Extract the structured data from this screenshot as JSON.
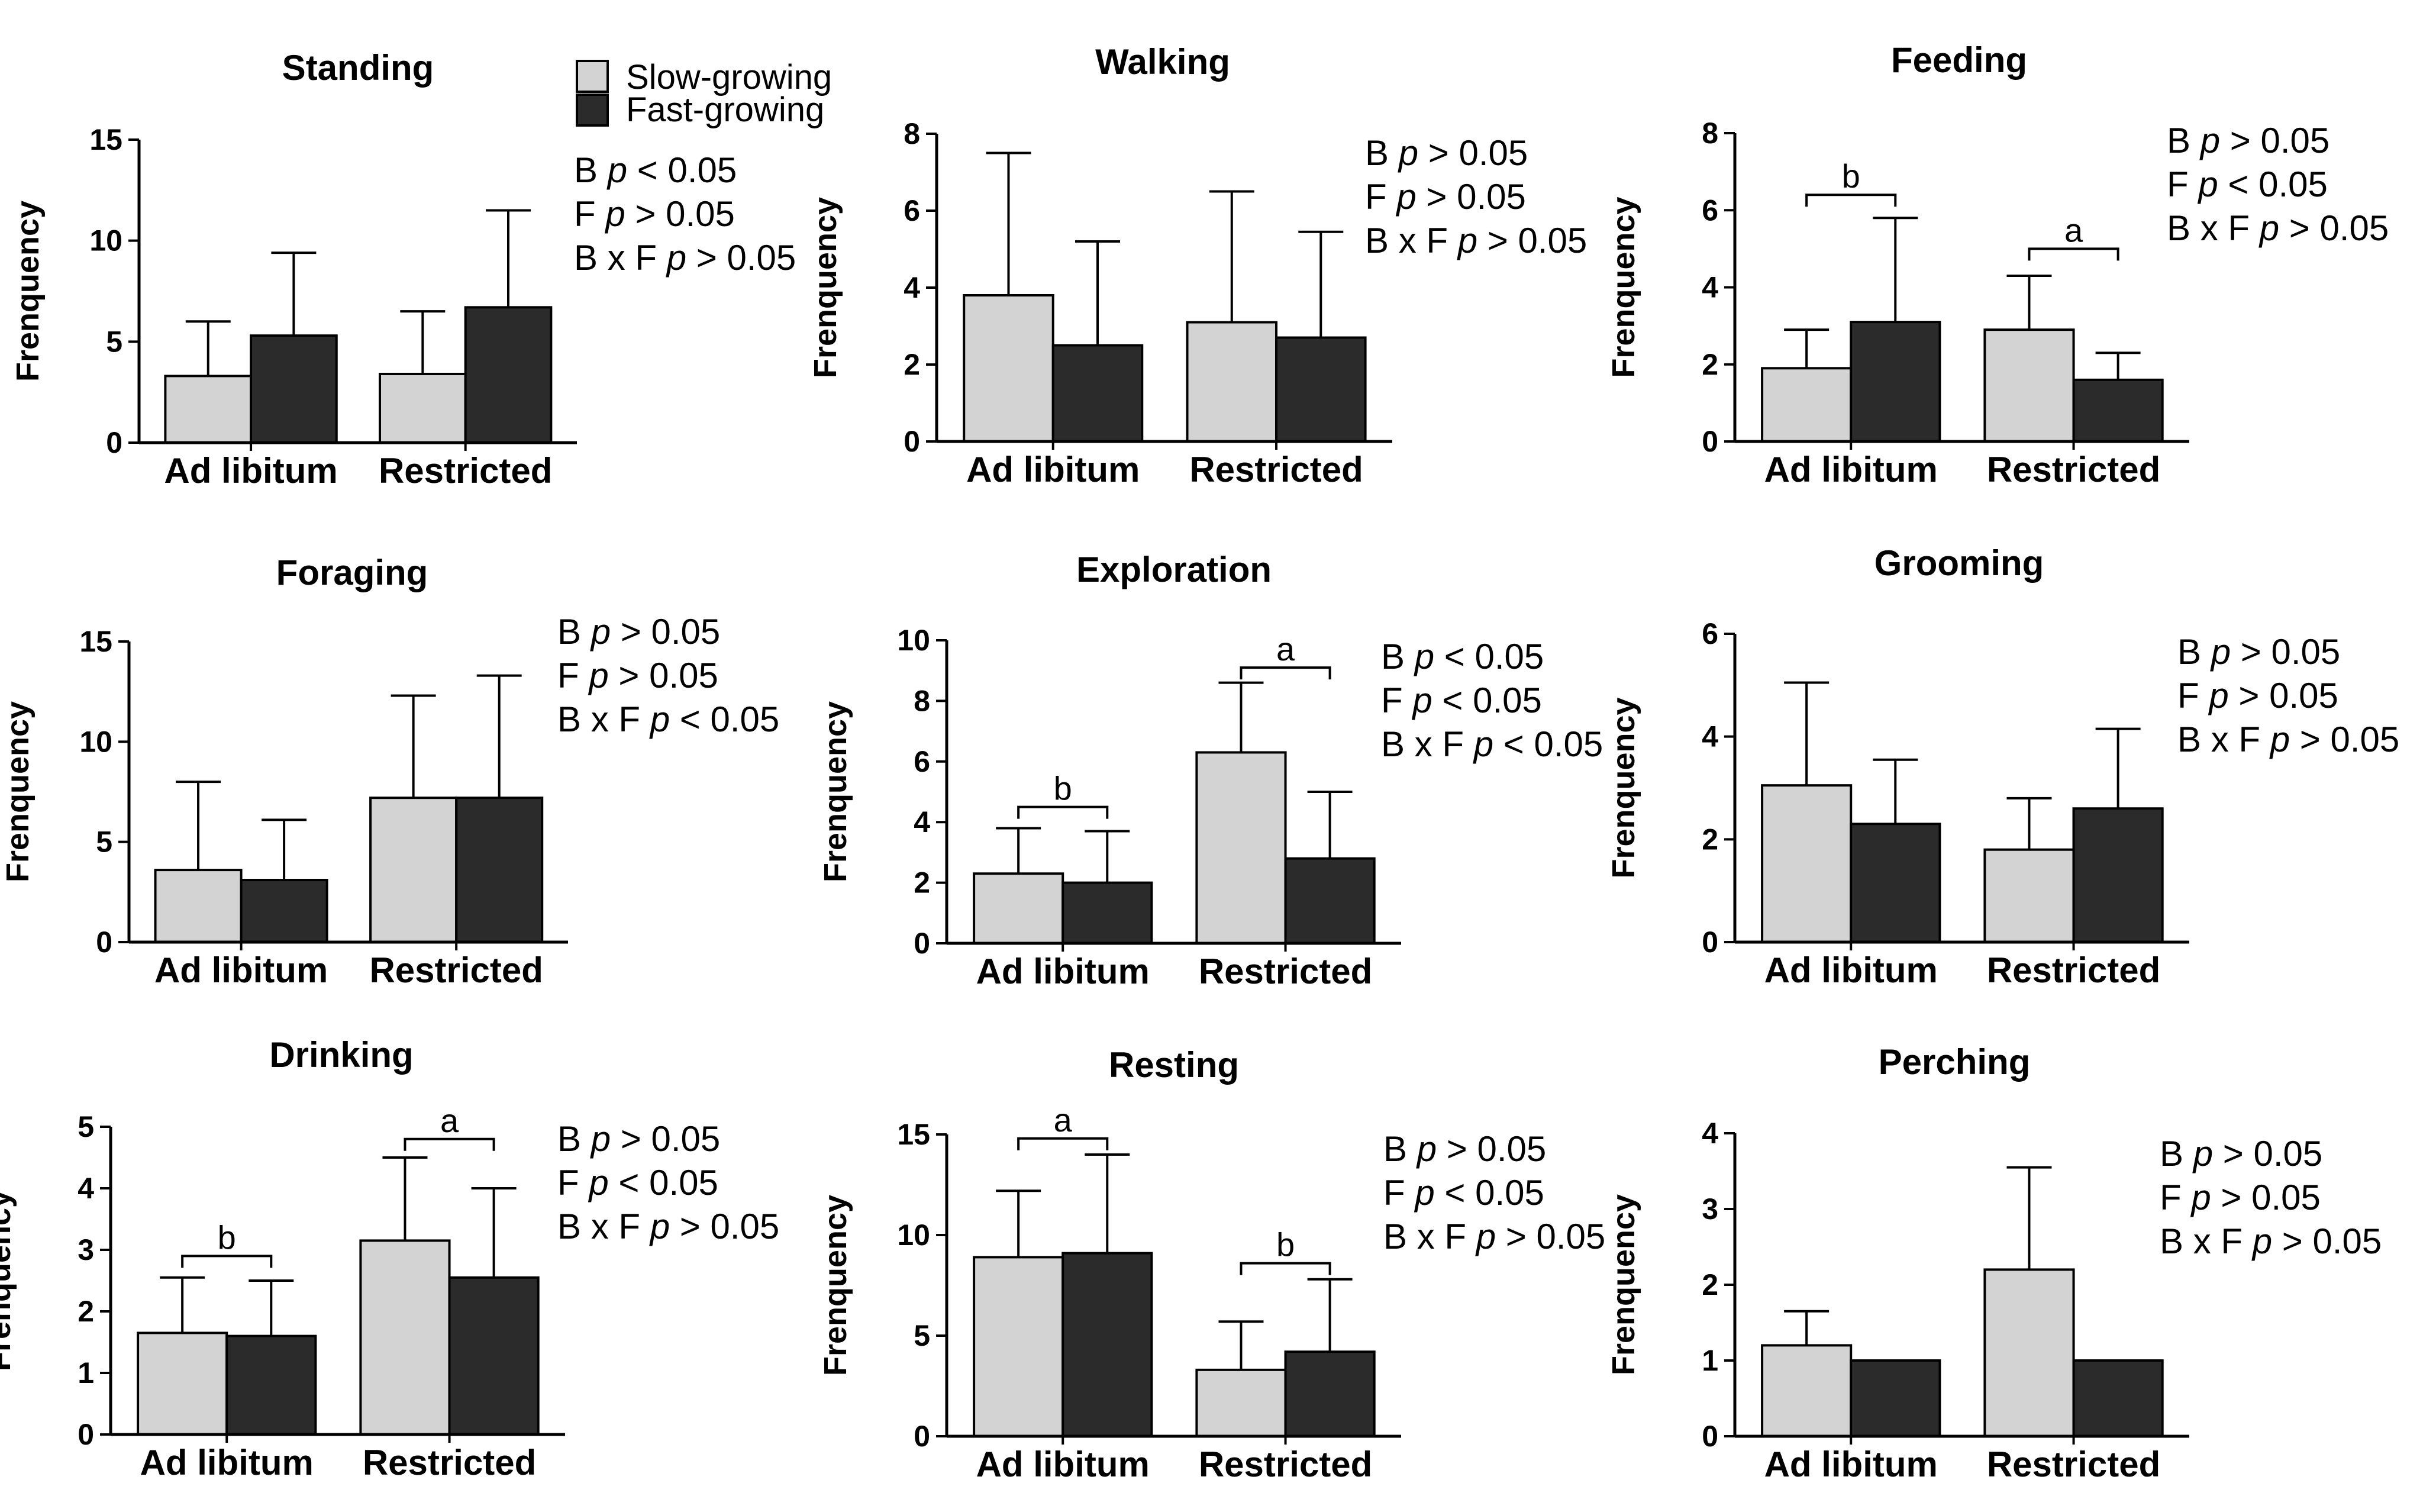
{
  "legend": {
    "entries": [
      {
        "label": "Slow-growing",
        "color": "#d3d3d3"
      },
      {
        "label": "Fast-growing",
        "color": "#2b2b2b"
      }
    ]
  },
  "chart_data": [
    {
      "type": "bar",
      "title": "Standing",
      "ylabel": "Frenquency",
      "categories": [
        "Ad libitum",
        "Restricted"
      ],
      "ylim": [
        0,
        15
      ],
      "yticks": [
        0,
        5,
        10,
        15
      ],
      "series": [
        {
          "name": "Slow-growing",
          "values": [
            3.3,
            3.4
          ],
          "errors": [
            2.7,
            3.1
          ]
        },
        {
          "name": "Fast-growing",
          "values": [
            5.3,
            6.7
          ],
          "errors": [
            4.1,
            4.8
          ]
        }
      ],
      "stats": [
        "B p < 0.05",
        "F p > 0.05",
        "B x F p > 0.05"
      ],
      "significance": []
    },
    {
      "type": "bar",
      "title": "Walking",
      "ylabel": "Frenquency",
      "categories": [
        "Ad libitum",
        "Restricted"
      ],
      "ylim": [
        0,
        8
      ],
      "yticks": [
        0,
        2,
        4,
        6,
        8
      ],
      "series": [
        {
          "name": "Slow-growing",
          "values": [
            3.8,
            3.1
          ],
          "errors": [
            3.7,
            3.4
          ]
        },
        {
          "name": "Fast-growing",
          "values": [
            2.5,
            2.7
          ],
          "errors": [
            2.7,
            2.75
          ]
        }
      ],
      "stats": [
        "B p > 0.05",
        "F p > 0.05",
        "B x F p > 0.05"
      ],
      "significance": []
    },
    {
      "type": "bar",
      "title": "Feeding",
      "ylabel": "Frenquency",
      "categories": [
        "Ad libitum",
        "Restricted"
      ],
      "ylim": [
        0,
        8
      ],
      "yticks": [
        0,
        2,
        4,
        6,
        8
      ],
      "series": [
        {
          "name": "Slow-growing",
          "values": [
            1.9,
            2.9
          ],
          "errors": [
            1.0,
            1.4
          ]
        },
        {
          "name": "Fast-growing",
          "values": [
            3.1,
            1.6
          ],
          "errors": [
            2.7,
            0.7
          ]
        }
      ],
      "stats": [
        "B p > 0.05",
        "F p < 0.05",
        "B x F p > 0.05"
      ],
      "significance": [
        {
          "category": 0,
          "label": "b",
          "y": 6.4
        },
        {
          "category": 1,
          "label": "a",
          "y": 5.0
        }
      ]
    },
    {
      "type": "bar",
      "title": "Foraging",
      "ylabel": "Frenquency",
      "categories": [
        "Ad libitum",
        "Restricted"
      ],
      "ylim": [
        0,
        15
      ],
      "yticks": [
        0,
        5,
        10,
        15
      ],
      "series": [
        {
          "name": "Slow-growing",
          "values": [
            3.6,
            7.2
          ],
          "errors": [
            4.4,
            5.1
          ]
        },
        {
          "name": "Fast-growing",
          "values": [
            3.1,
            7.2
          ],
          "errors": [
            3.0,
            6.1
          ]
        }
      ],
      "stats": [
        "B p > 0.05",
        "F p > 0.05",
        "B x F p < 0.05"
      ],
      "significance": []
    },
    {
      "type": "bar",
      "title": "Exploration",
      "ylabel": "Frenquency",
      "categories": [
        "Ad libitum",
        "Restricted"
      ],
      "ylim": [
        0,
        10
      ],
      "yticks": [
        0,
        2,
        4,
        6,
        8,
        10
      ],
      "series": [
        {
          "name": "Slow-growing",
          "values": [
            2.3,
            6.3
          ],
          "errors": [
            1.5,
            2.3
          ]
        },
        {
          "name": "Fast-growing",
          "values": [
            2.0,
            2.8
          ],
          "errors": [
            1.7,
            2.2
          ]
        }
      ],
      "stats": [
        "B p < 0.05",
        "F p < 0.05",
        "B x F p < 0.05"
      ],
      "significance": [
        {
          "category": 0,
          "label": "b",
          "y": 4.5
        },
        {
          "category": 1,
          "label": "a",
          "y": 9.1
        }
      ]
    },
    {
      "type": "bar",
      "title": "Grooming",
      "ylabel": "Frenquency",
      "categories": [
        "Ad libitum",
        "Restricted"
      ],
      "ylim": [
        0,
        6
      ],
      "yticks": [
        0,
        2,
        4,
        6
      ],
      "series": [
        {
          "name": "Slow-growing",
          "values": [
            3.05,
            1.8
          ],
          "errors": [
            2.0,
            1.0
          ]
        },
        {
          "name": "Fast-growing",
          "values": [
            2.3,
            2.6
          ],
          "errors": [
            1.25,
            1.55
          ]
        }
      ],
      "stats": [
        "B p > 0.05",
        "F p > 0.05",
        "B x F p > 0.05"
      ],
      "significance": []
    },
    {
      "type": "bar",
      "title": "Drinking",
      "ylabel": "Frenquency",
      "categories": [
        "Ad libitum",
        "Restricted"
      ],
      "ylim": [
        0,
        5
      ],
      "yticks": [
        0,
        1,
        2,
        3,
        4,
        5
      ],
      "series": [
        {
          "name": "Slow-growing",
          "values": [
            1.65,
            3.15
          ],
          "errors": [
            0.9,
            1.35
          ]
        },
        {
          "name": "Fast-growing",
          "values": [
            1.6,
            2.55
          ],
          "errors": [
            0.9,
            1.45
          ]
        }
      ],
      "stats": [
        "B p > 0.05",
        "F p < 0.05",
        "B x F p > 0.05"
      ],
      "significance": [
        {
          "category": 0,
          "label": "b",
          "y": 2.9
        },
        {
          "category": 1,
          "label": "a",
          "y": 4.8
        }
      ]
    },
    {
      "type": "bar",
      "title": "Resting",
      "ylabel": "Frenquency",
      "categories": [
        "Ad libitum",
        "Restricted"
      ],
      "ylim": [
        0,
        15
      ],
      "yticks": [
        0,
        5,
        10,
        15
      ],
      "series": [
        {
          "name": "Slow-growing",
          "values": [
            8.9,
            3.3
          ],
          "errors": [
            3.3,
            2.4
          ]
        },
        {
          "name": "Fast-growing",
          "values": [
            9.1,
            4.2
          ],
          "errors": [
            4.9,
            3.6
          ]
        }
      ],
      "stats": [
        "B p > 0.05",
        "F p < 0.05",
        "B x F p > 0.05"
      ],
      "significance": [
        {
          "category": 0,
          "label": "a",
          "y": 14.8
        },
        {
          "category": 1,
          "label": "b",
          "y": 8.6
        }
      ]
    },
    {
      "type": "bar",
      "title": "Perching",
      "ylabel": "Frenquency",
      "categories": [
        "Ad libitum",
        "Restricted"
      ],
      "ylim": [
        0,
        4
      ],
      "yticks": [
        0,
        1,
        2,
        3,
        4
      ],
      "series": [
        {
          "name": "Slow-growing",
          "values": [
            1.2,
            2.2
          ],
          "errors": [
            0.45,
            1.35
          ]
        },
        {
          "name": "Fast-growing",
          "values": [
            1.0,
            1.0
          ],
          "errors": [
            0,
            0
          ]
        }
      ],
      "stats": [
        "B p > 0.05",
        "F p > 0.05",
        "B x F p > 0.05"
      ],
      "significance": []
    }
  ]
}
